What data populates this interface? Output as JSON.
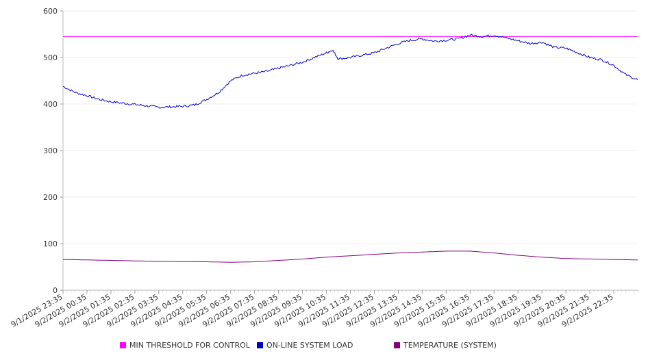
{
  "chart_data": {
    "type": "line",
    "ylim": [
      0,
      600
    ],
    "yticks": [
      0,
      100,
      200,
      300,
      400,
      500,
      600
    ],
    "x_tick_labels": [
      "9/1/2025 23:35",
      "9/2/2025 00:35",
      "9/2/2025 01:35",
      "9/2/2025 02:35",
      "9/2/2025 03:35",
      "9/2/2025 04:35",
      "9/2/2025 05:35",
      "9/2/2025 06:35",
      "9/2/2025 07:35",
      "9/2/2025 08:35",
      "9/2/2025 09:35",
      "9/2/2025 10:35",
      "9/2/2025 11:35",
      "9/2/2025 12:35",
      "9/2/2025 13:35",
      "9/2/2025 14:35",
      "9/2/2025 15:35",
      "9/2/2025 16:35",
      "9/2/2025 17:35",
      "9/2/2025 18:35",
      "9/2/2025 19:35",
      "9/2/2025 20:35",
      "9/2/2025 21:35",
      "9/2/2025 22:35"
    ],
    "grid": true,
    "legend_position": "bottom",
    "series": [
      {
        "name": "MIN THRESHOLD FOR CONTROL",
        "color": "#ff00ff",
        "x": [
          "9/1/2025 23:35",
          "9/2/2025 23:35"
        ],
        "values": [
          545,
          545
        ]
      },
      {
        "name": "ON-LINE SYSTEM LOAD",
        "color": "#0000cc",
        "x": [
          "9/1/2025 23:35",
          "9/2/2025 00:05",
          "9/2/2025 00:35",
          "9/2/2025 01:05",
          "9/2/2025 01:35",
          "9/2/2025 02:05",
          "9/2/2025 02:35",
          "9/2/2025 03:05",
          "9/2/2025 03:35",
          "9/2/2025 04:05",
          "9/2/2025 04:35",
          "9/2/2025 05:05",
          "9/2/2025 05:35",
          "9/2/2025 06:05",
          "9/2/2025 06:35",
          "9/2/2025 07:05",
          "9/2/2025 07:35",
          "9/2/2025 08:05",
          "9/2/2025 08:35",
          "9/2/2025 09:05",
          "9/2/2025 09:35",
          "9/2/2025 10:05",
          "9/2/2025 10:35",
          "9/2/2025 10:50",
          "9/2/2025 11:05",
          "9/2/2025 11:35",
          "9/2/2025 12:05",
          "9/2/2025 12:35",
          "9/2/2025 13:05",
          "9/2/2025 13:35",
          "9/2/2025 14:05",
          "9/2/2025 14:35",
          "9/2/2025 15:05",
          "9/2/2025 15:35",
          "9/2/2025 16:05",
          "9/2/2025 16:35",
          "9/2/2025 17:05",
          "9/2/2025 17:35",
          "9/2/2025 18:05",
          "9/2/2025 18:35",
          "9/2/2025 19:05",
          "9/2/2025 19:35",
          "9/2/2025 20:05",
          "9/2/2025 20:35",
          "9/2/2025 21:05",
          "9/2/2025 21:35",
          "9/2/2025 22:05",
          "9/2/2025 22:35",
          "9/2/2025 23:05",
          "9/2/2025 23:35"
        ],
        "values": [
          438,
          425,
          418,
          410,
          405,
          402,
          399,
          396,
          393,
          394,
          395,
          398,
          410,
          425,
          450,
          462,
          466,
          470,
          477,
          483,
          490,
          500,
          510,
          516,
          497,
          500,
          505,
          510,
          520,
          530,
          537,
          540,
          535,
          537,
          540,
          548,
          545,
          548,
          542,
          536,
          530,
          533,
          522,
          520,
          510,
          500,
          495,
          483,
          463,
          452
        ]
      },
      {
        "name": "TEMPERATURE (SYSTEM)",
        "color": "#800080",
        "x": [
          "9/1/2025 23:35",
          "9/2/2025 01:35",
          "9/2/2025 03:35",
          "9/2/2025 05:35",
          "9/2/2025 06:35",
          "9/2/2025 07:35",
          "9/2/2025 08:35",
          "9/2/2025 09:35",
          "9/2/2025 10:35",
          "9/2/2025 11:35",
          "9/2/2025 12:35",
          "9/2/2025 13:35",
          "9/2/2025 14:35",
          "9/2/2025 15:35",
          "9/2/2025 16:35",
          "9/2/2025 17:35",
          "9/2/2025 18:35",
          "9/2/2025 19:35",
          "9/2/2025 20:35",
          "9/2/2025 21:35",
          "9/2/2025 22:35",
          "9/2/2025 23:35"
        ],
        "values": [
          66,
          64,
          62,
          61,
          60,
          61,
          64,
          67,
          71,
          74,
          77,
          80,
          82,
          84,
          84,
          80,
          75,
          71,
          68,
          67,
          66,
          65
        ]
      }
    ]
  }
}
